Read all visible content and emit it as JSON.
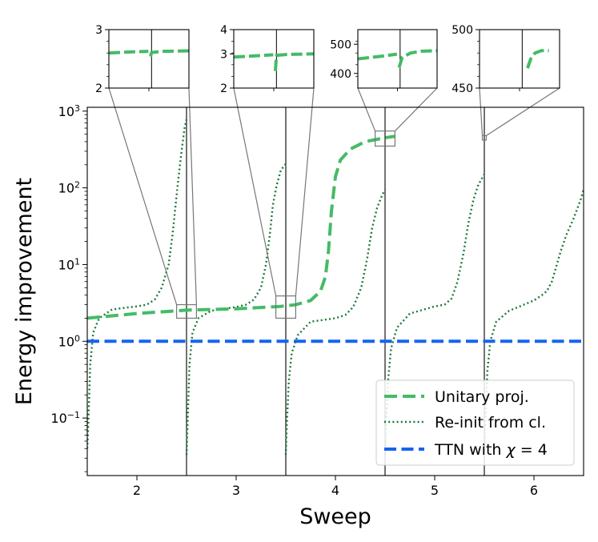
{
  "chart_data": {
    "type": "line",
    "xlabel": "Sweep",
    "ylabel": "Energy improvement",
    "xlim": [
      1.5,
      6.5
    ],
    "ylim_log10": [
      -1.75,
      3.05
    ],
    "yscale": "log",
    "x_ticks": [
      {
        "v": 2,
        "label": "2"
      },
      {
        "v": 3,
        "label": "3"
      },
      {
        "v": 4,
        "label": "4"
      },
      {
        "v": 5,
        "label": "5"
      },
      {
        "v": 6,
        "label": "6"
      }
    ],
    "y_ticks": [
      {
        "exp": -1,
        "base": "10",
        "sup": "−1"
      },
      {
        "exp": 0,
        "base": "10",
        "sup": "0"
      },
      {
        "exp": 1,
        "base": "10",
        "sup": "1"
      },
      {
        "exp": 2,
        "base": "10",
        "sup": "2"
      },
      {
        "exp": 3,
        "base": "10",
        "sup": "3"
      }
    ],
    "sweep_boundaries": [
      2.5,
      3.5,
      4.5,
      5.5
    ],
    "series": [
      {
        "name": "Unitary proj.",
        "style": "dashed-thick",
        "color": "#44bb66",
        "points": [
          [
            1.5,
            2.0
          ],
          [
            2.0,
            2.3
          ],
          [
            2.5,
            2.55
          ],
          [
            3.0,
            2.65
          ],
          [
            3.45,
            2.85
          ],
          [
            3.6,
            3.0
          ],
          [
            3.75,
            3.4
          ],
          [
            3.85,
            4.5
          ],
          [
            3.9,
            7
          ],
          [
            3.93,
            15
          ],
          [
            3.96,
            50
          ],
          [
            4.0,
            140
          ],
          [
            4.05,
            230
          ],
          [
            4.15,
            320
          ],
          [
            4.3,
            400
          ],
          [
            4.5,
            450
          ],
          [
            4.6,
            470
          ]
        ]
      },
      {
        "name": "Re-init from cl.",
        "style": "dotted",
        "color": "#1a7a3a",
        "points": [
          [
            1.5,
            0.04
          ],
          [
            1.51,
            0.08
          ],
          [
            1.53,
            0.5
          ],
          [
            1.56,
            1.3
          ],
          [
            1.62,
            2.0
          ],
          [
            1.75,
            2.6
          ],
          [
            2.0,
            2.85
          ],
          [
            2.1,
            3.0
          ],
          [
            2.18,
            3.5
          ],
          [
            2.25,
            5.0
          ],
          [
            2.32,
            10
          ],
          [
            2.36,
            25
          ],
          [
            2.39,
            60
          ],
          [
            2.42,
            140
          ],
          [
            2.45,
            300
          ],
          [
            2.48,
            600
          ],
          [
            2.5,
            780
          ],
          null,
          [
            2.5,
            0.033
          ],
          [
            2.51,
            0.08
          ],
          [
            2.53,
            0.5
          ],
          [
            2.56,
            1.3
          ],
          [
            2.62,
            2.0
          ],
          [
            2.75,
            2.5
          ],
          [
            3.0,
            2.8
          ],
          [
            3.1,
            3.0
          ],
          [
            3.18,
            3.5
          ],
          [
            3.25,
            5.0
          ],
          [
            3.3,
            10
          ],
          [
            3.34,
            25
          ],
          [
            3.37,
            60
          ],
          [
            3.41,
            110
          ],
          [
            3.45,
            170
          ],
          [
            3.5,
            205
          ],
          null,
          [
            3.5,
            0.033
          ],
          [
            3.51,
            0.08
          ],
          [
            3.53,
            0.3
          ],
          [
            3.56,
            0.7
          ],
          [
            3.62,
            1.2
          ],
          [
            3.75,
            1.8
          ],
          [
            4.0,
            2.0
          ],
          [
            4.1,
            2.2
          ],
          [
            4.18,
            2.8
          ],
          [
            4.26,
            5.0
          ],
          [
            4.32,
            12
          ],
          [
            4.37,
            30
          ],
          [
            4.42,
            55
          ],
          [
            4.47,
            80
          ],
          [
            4.5,
            95
          ],
          null,
          [
            4.5,
            0.033
          ],
          [
            4.51,
            0.08
          ],
          [
            4.53,
            0.3
          ],
          [
            4.56,
            0.8
          ],
          [
            4.62,
            1.5
          ],
          [
            4.75,
            2.3
          ],
          [
            5.0,
            2.85
          ],
          [
            5.1,
            3.0
          ],
          [
            5.17,
            3.6
          ],
          [
            5.23,
            6.0
          ],
          [
            5.29,
            14
          ],
          [
            5.34,
            35
          ],
          [
            5.39,
            70
          ],
          [
            5.44,
            110
          ],
          [
            5.5,
            150
          ],
          null,
          [
            5.5,
            0.033
          ],
          [
            5.51,
            0.08
          ],
          [
            5.53,
            0.4
          ],
          [
            5.56,
            1.0
          ],
          [
            5.62,
            1.8
          ],
          [
            5.75,
            2.5
          ],
          [
            6.0,
            3.4
          ],
          [
            6.08,
            4.0
          ],
          [
            6.13,
            4.5
          ],
          [
            6.18,
            6.0
          ],
          [
            6.22,
            9
          ],
          [
            6.27,
            15
          ],
          [
            6.33,
            25
          ],
          [
            6.4,
            40
          ],
          [
            6.47,
            70
          ],
          [
            6.5,
            95
          ]
        ]
      },
      {
        "name": "TTN with χ = 4",
        "style": "dashed",
        "color": "#1763f0",
        "points": [
          [
            1.5,
            1.0
          ],
          [
            6.5,
            1.0
          ]
        ]
      }
    ],
    "legend": {
      "position": "bottom-right",
      "entries": [
        {
          "label": "Unitary proj."
        },
        {
          "label": "Re-init from cl."
        },
        {
          "label_prefix": "TTN with ",
          "label_var": "χ",
          "label_suffix": " = 4"
        }
      ]
    },
    "insets": [
      {
        "xlim": [
          2.1,
          2.85
        ],
        "ylim": [
          2,
          3
        ],
        "scale": "log",
        "y_ticks": [
          {
            "v": 3,
            "label": "3"
          },
          {
            "v": 2,
            "label": "2"
          }
        ],
        "divider_x": 2.5,
        "curve": [
          [
            2.1,
            2.55
          ],
          [
            2.3,
            2.57
          ],
          [
            2.47,
            2.58
          ],
          null,
          [
            2.49,
            2.49
          ],
          [
            2.5,
            2.56
          ],
          [
            2.6,
            2.58
          ],
          [
            2.85,
            2.59
          ]
        ],
        "zoom_box": {
          "x": [
            2.4,
            2.6
          ],
          "y": [
            2.0,
            3.0
          ]
        }
      },
      {
        "xlim": [
          3.1,
          3.85
        ],
        "ylim": [
          2,
          4
        ],
        "scale": "log",
        "y_ticks": [
          {
            "v": 4,
            "label": "4"
          },
          {
            "v": 3,
            "label": "3"
          },
          {
            "v": 2,
            "label": "2"
          }
        ],
        "divider_x": 3.5,
        "curve": [
          [
            3.1,
            2.89
          ],
          [
            3.3,
            2.93
          ],
          [
            3.47,
            2.97
          ],
          null,
          [
            3.49,
            2.45
          ],
          [
            3.5,
            2.95
          ],
          [
            3.6,
            2.98
          ],
          [
            3.85,
            3.0
          ]
        ],
        "zoom_box": {
          "x": [
            3.4,
            3.6
          ],
          "y": [
            2.0,
            3.9
          ]
        }
      },
      {
        "xlim": [
          4.1,
          4.85
        ],
        "ylim": [
          350,
          550
        ],
        "scale": "linear",
        "y_ticks": [
          {
            "v": 500,
            "label": "500"
          },
          {
            "v": 400,
            "label": "400"
          }
        ],
        "divider_x": 4.5,
        "curve": [
          [
            4.1,
            450
          ],
          [
            4.3,
            458
          ],
          [
            4.47,
            466
          ],
          null,
          [
            4.49,
            420
          ],
          [
            4.52,
            455
          ],
          [
            4.6,
            470
          ],
          [
            4.7,
            476
          ],
          [
            4.85,
            478
          ]
        ],
        "zoom_box": {
          "x": [
            4.4,
            4.6
          ],
          "y": [
            350,
            550
          ]
        }
      },
      {
        "xlim": [
          5.1,
          5.85
        ],
        "ylim": [
          450,
          500
        ],
        "scale": "linear",
        "y_ticks": [
          {
            "v": 500,
            "label": "500"
          },
          {
            "v": 450,
            "label": "450"
          }
        ],
        "divider_x": 5.5,
        "curve": [
          [
            5.55,
            467
          ],
          [
            5.58,
            475
          ],
          [
            5.62,
            480
          ],
          [
            5.68,
            482
          ],
          [
            5.75,
            482
          ]
        ],
        "zoom_box": {
          "x": [
            5.48,
            5.52
          ],
          "y": [
            420,
            480
          ]
        }
      }
    ]
  }
}
